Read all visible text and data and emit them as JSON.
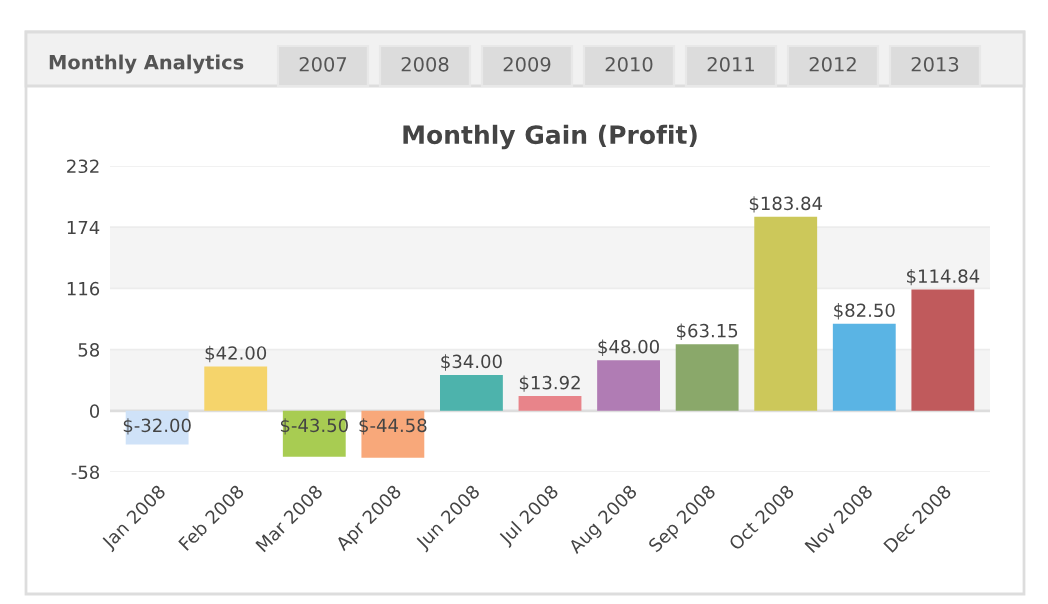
{
  "chart_data": {
    "type": "bar",
    "title": "Monthly Gain (Profit)",
    "annotations": [
      "Monthly Analytics",
      "2007",
      "2008",
      "2009",
      "2010",
      "2011",
      "2012",
      "2013"
    ],
    "categories": [
      "Jan 2008",
      "Feb 2008",
      "Mar 2008",
      "Apr 2008",
      "Jun 2008",
      "Jul 2008",
      "Aug 2008",
      "Sep 2008",
      "Oct 2008",
      "Nov 2008",
      "Dec 2008"
    ],
    "values": [
      -32.0,
      42.0,
      -43.5,
      -44.58,
      34.0,
      13.92,
      48.0,
      63.15,
      183.84,
      82.5,
      114.84
    ],
    "value_labels": [
      "$-32.00",
      "$42.00",
      "$-43.50",
      "$-44.58",
      "$34.00",
      "$13.92",
      "$48.00",
      "$63.15",
      "$183.84",
      "$82.50",
      "$114.84"
    ],
    "colors": [
      "#cfe2f8",
      "#f5d46b",
      "#a8cc52",
      "#f8a87a",
      "#4db3ac",
      "#e8848a",
      "#b07cb4",
      "#8aa86a",
      "#ccc85a",
      "#5ab4e4",
      "#c05a5c"
    ],
    "ylim": [
      -58,
      232
    ],
    "yticks": [
      -58,
      0,
      58,
      116,
      174,
      232
    ],
    "bands": [
      {
        "axis": "y",
        "from": 0,
        "to": 58,
        "color": "#f4f4f4"
      },
      {
        "axis": "y",
        "from": 116,
        "to": 174,
        "color": "#f4f4f4"
      }
    ],
    "grid": "y"
  }
}
